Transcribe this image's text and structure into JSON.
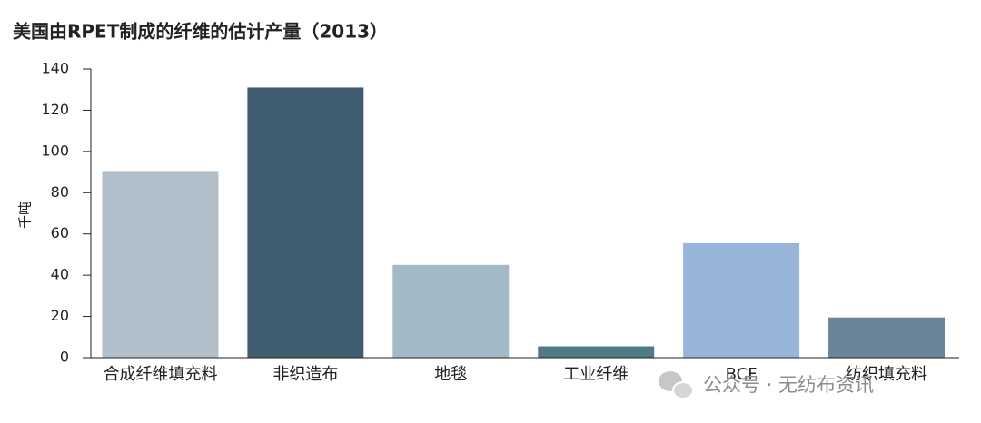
{
  "chart_data": {
    "type": "bar",
    "title": "美国由RPET制成的纤维的估计产量（2013）",
    "y_label": "千吨",
    "categories": [
      "合成纤维填充料",
      "非织造布",
      "地毯",
      "工业纤维",
      "BCF",
      "纺织填充料"
    ],
    "values": [
      90.5,
      131,
      45,
      5.5,
      55.5,
      19.5
    ],
    "colors": [
      "#b0bfc9",
      "#405d70",
      "#a2bac8",
      "#4f7b87",
      "#98b4d8",
      "#6a8499"
    ],
    "ylim": [
      0,
      140
    ],
    "yticks": [
      0,
      20,
      40,
      60,
      80,
      100,
      120,
      140
    ],
    "grid": false
  },
  "watermark": "公众号 · 无纺布资讯"
}
